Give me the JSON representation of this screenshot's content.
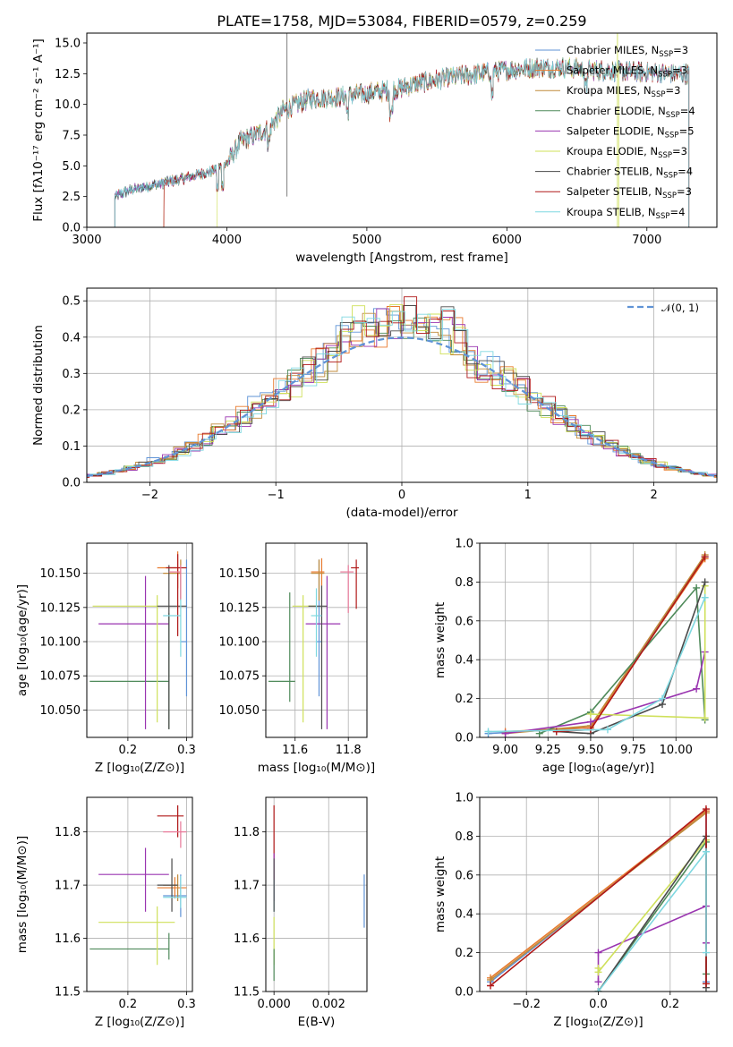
{
  "title": "PLATE=1758, MJD=53084, FIBERID=0579, z=0.259",
  "colors": {
    "chabrier_miles": "#5f93d6",
    "salpeter_miles": "#e87a2e",
    "kroupa_miles": "#c08a3a",
    "chabrier_elodie": "#4f8a5a",
    "salpeter_elodie": "#9a35b0",
    "kroupa_elodie": "#cfe05a",
    "chabrier_stelib": "#4a4a4a",
    "salpeter_stelib": "#b01818",
    "kroupa_stelib": "#7fd8e0",
    "pink": "#e87a9a",
    "normal": "#5f93d6"
  },
  "chart_data": [
    {
      "id": "spectrum",
      "type": "line",
      "xlabel": "wavelength [Angstrom, rest frame]",
      "ylabel": "Flux [fλ10⁻¹⁷ erg cm⁻² s⁻¹ A⁻¹]",
      "xlim": [
        3000,
        7500
      ],
      "ylim": [
        0,
        15.8
      ],
      "xticks": [
        "3000",
        "4000",
        "5000",
        "6000",
        "7000"
      ],
      "yticks": [
        "0.0",
        "2.5",
        "5.0",
        "7.5",
        "10.0",
        "12.5",
        "15.0"
      ],
      "legend_position": "upper-right",
      "legend": [
        {
          "label": "Chabrier MILES, N",
          "sub": "SSP",
          "suffix": "=3"
        },
        {
          "label": "Salpeter MILES, N",
          "sub": "SSP",
          "suffix": "=3"
        },
        {
          "label": "Kroupa MILES, N",
          "sub": "SSP",
          "suffix": "=3"
        },
        {
          "label": "Chabrier ELODIE, N",
          "sub": "SSP",
          "suffix": "=4"
        },
        {
          "label": "Salpeter ELODIE, N",
          "sub": "SSP",
          "suffix": "=5"
        },
        {
          "label": "Kroupa ELODIE, N",
          "sub": "SSP",
          "suffix": "=3"
        },
        {
          "label": "Chabrier STELIB, N",
          "sub": "SSP",
          "suffix": "=4"
        },
        {
          "label": "Salpeter STELIB, N",
          "sub": "SSP",
          "suffix": "=3"
        },
        {
          "label": "Kroupa STELIB, N",
          "sub": "SSP",
          "suffix": "=4"
        }
      ],
      "anchors_x": [
        3200,
        3300,
        3500,
        3700,
        3900,
        4000,
        4100,
        4200,
        4300,
        4400,
        4600,
        4800,
        5000,
        5200,
        5400,
        5600,
        5800,
        6000,
        6200,
        6400,
        6600,
        6800,
        7000,
        7200,
        7300
      ],
      "anchors_y": [
        2.5,
        3.0,
        3.5,
        4.0,
        4.6,
        5.2,
        7.0,
        7.5,
        8.0,
        9.5,
        10.5,
        10.6,
        10.9,
        11.2,
        11.8,
        12.2,
        12.5,
        12.8,
        13.0,
        13.0,
        12.8,
        12.7,
        12.6,
        12.5,
        12.5
      ],
      "series_start": [
        3200,
        3200,
        3550,
        3200,
        3200,
        3930,
        3200,
        3550,
        3200
      ],
      "series_end": [
        7300,
        7300,
        7300,
        7300,
        7300,
        6800,
        7300,
        7300,
        7300
      ]
    },
    {
      "id": "residuals",
      "type": "histogram",
      "xlabel": "(data-model)/error",
      "ylabel": "Normed distribution",
      "xlim": [
        -2.5,
        2.5
      ],
      "ylim": [
        0,
        0.535
      ],
      "xticks": [
        "−2",
        "−1",
        "0",
        "1",
        "2"
      ],
      "yticks": [
        "0.0",
        "0.1",
        "0.2",
        "0.3",
        "0.4",
        "0.5"
      ],
      "legend_position": "upper-right",
      "normal_label": "𝒩(0, 1)",
      "bin_width": 0.1
    },
    {
      "id": "age_vs_z",
      "type": "errorbar",
      "xlabel": "Z [log₁₀(Z/Z⊙)]",
      "ylabel": "age  [log₁₀(age/yr)]",
      "xlim": [
        0.13,
        0.31
      ],
      "ylim": [
        10.03,
        10.172
      ],
      "xticks": [
        "0.2",
        "0.3"
      ],
      "yticks": [
        "10.050",
        "10.075",
        "10.100",
        "10.125",
        "10.150"
      ],
      "points": [
        {
          "series": "chabrier_miles",
          "x": 0.3,
          "y": 10.1,
          "xe": [
            0.01,
            0.0
          ],
          "ye": [
            0.04,
            0.06
          ]
        },
        {
          "series": "salpeter_miles",
          "x": 0.285,
          "y": 10.154,
          "xe": [
            0.035,
            0.0
          ],
          "ye": [
            0.015,
            0.012
          ]
        },
        {
          "series": "kroupa_miles",
          "x": 0.29,
          "y": 10.15,
          "xe": [
            0.03,
            0.0
          ],
          "ye": [
            0.02,
            0.01
          ]
        },
        {
          "series": "chabrier_elodie",
          "x": 0.27,
          "y": 10.071,
          "xe": [
            0.135,
            0.0
          ],
          "ye": [
            0.035,
            0.05
          ]
        },
        {
          "series": "salpeter_elodie",
          "x": 0.23,
          "y": 10.113,
          "xe": [
            0.08,
            0.04
          ],
          "ye": [
            0.077,
            0.035
          ]
        },
        {
          "series": "kroupa_elodie",
          "x": 0.25,
          "y": 10.126,
          "xe": [
            0.11,
            0.0
          ],
          "ye": [
            0.085,
            0.008
          ]
        },
        {
          "series": "chabrier_stelib",
          "x": 0.27,
          "y": 10.126,
          "xe": [
            0.02,
            0.03
          ],
          "ye": [
            0.09,
            0.03
          ]
        },
        {
          "series": "salpeter_stelib",
          "x": 0.285,
          "y": 10.154,
          "xe": [
            0.02,
            0.015
          ],
          "ye": [
            0.05,
            0.01
          ]
        },
        {
          "series": "kroupa_stelib",
          "x": 0.29,
          "y": 10.119,
          "xe": [
            0.03,
            0.0
          ],
          "ye": [
            0.03,
            0.03
          ]
        },
        {
          "series": "pink",
          "x": 0.29,
          "y": 10.151,
          "xe": [
            0.02,
            0.0
          ],
          "ye": [
            0.02,
            0.005
          ]
        }
      ]
    },
    {
      "id": "age_vs_mass",
      "type": "errorbar",
      "xlabel": "mass [log₁₀(M/M⊙)]",
      "ylabel": "",
      "xlim": [
        11.49,
        11.87
      ],
      "ylim": [
        10.03,
        10.172
      ],
      "xticks": [
        "11.6",
        "11.8"
      ],
      "yticks": [
        "10.050",
        "10.075",
        "10.100",
        "10.125",
        "10.150"
      ],
      "points": [
        {
          "series": "chabrier_miles",
          "x": 11.69,
          "y": 10.1,
          "xe": [
            0.01,
            0.01
          ],
          "ye": [
            0.04,
            0.06
          ]
        },
        {
          "series": "salpeter_miles",
          "x": 11.7,
          "y": 10.151,
          "xe": [
            0.04,
            0.01
          ],
          "ye": [
            0.01,
            0.01
          ]
        },
        {
          "series": "kroupa_miles",
          "x": 11.69,
          "y": 10.15,
          "xe": [
            0.03,
            0.02
          ],
          "ye": [
            0.02,
            0.01
          ]
        },
        {
          "series": "chabrier_elodie",
          "x": 11.58,
          "y": 10.071,
          "xe": [
            0.08,
            0.02
          ],
          "ye": [
            0.015,
            0.065
          ]
        },
        {
          "series": "salpeter_elodie",
          "x": 11.72,
          "y": 10.113,
          "xe": [
            0.08,
            0.05
          ],
          "ye": [
            0.077,
            0.035
          ]
        },
        {
          "series": "kroupa_elodie",
          "x": 11.63,
          "y": 10.126,
          "xe": [
            0.04,
            0.05
          ],
          "ye": [
            0.085,
            0.008
          ]
        },
        {
          "series": "chabrier_stelib",
          "x": 11.7,
          "y": 10.126,
          "xe": [
            0.05,
            0.02
          ],
          "ye": [
            0.09,
            0.015
          ]
        },
        {
          "series": "salpeter_stelib",
          "x": 11.83,
          "y": 10.154,
          "xe": [
            0.02,
            0.01
          ],
          "ye": [
            0.03,
            0.006
          ]
        },
        {
          "series": "kroupa_stelib",
          "x": 11.68,
          "y": 10.119,
          "xe": [
            0.02,
            0.02
          ],
          "ye": [
            0.03,
            0.02
          ]
        },
        {
          "series": "pink",
          "x": 11.8,
          "y": 10.151,
          "xe": [
            0.03,
            0.02
          ],
          "ye": [
            0.03,
            0.005
          ]
        }
      ]
    },
    {
      "id": "weight_vs_age",
      "type": "line",
      "xlabel": "age  [log₁₀(age/yr)]",
      "ylabel": "mass weight",
      "xlim": [
        8.85,
        10.24
      ],
      "ylim": [
        0,
        1.0
      ],
      "xticks": [
        "9.00",
        "9.25",
        "9.50",
        "9.75",
        "10.00"
      ],
      "yticks": [
        "0.0",
        "0.2",
        "0.4",
        "0.6",
        "0.8",
        "1.0"
      ],
      "series": [
        {
          "name": "chabrier_miles",
          "x": [
            8.9,
            9.5,
            10.17
          ],
          "y": [
            0.02,
            0.05,
            0.93
          ]
        },
        {
          "name": "salpeter_miles",
          "x": [
            9.0,
            9.5,
            10.17
          ],
          "y": [
            0.03,
            0.05,
            0.92
          ]
        },
        {
          "name": "kroupa_miles",
          "x": [
            9.0,
            9.5,
            10.17
          ],
          "y": [
            0.02,
            0.06,
            0.94
          ]
        },
        {
          "name": "chabrier_elodie",
          "x": [
            9.2,
            9.5,
            10.12,
            10.17
          ],
          "y": [
            0.02,
            0.13,
            0.77,
            0.09
          ]
        },
        {
          "name": "salpeter_elodie",
          "x": [
            9.0,
            9.5,
            10.12,
            10.17
          ],
          "y": [
            0.02,
            0.08,
            0.25,
            0.44
          ]
        },
        {
          "name": "kroupa_elodie",
          "x": [
            9.5,
            10.17,
            10.17
          ],
          "y": [
            0.12,
            0.1,
            0.78
          ]
        },
        {
          "name": "chabrier_stelib",
          "x": [
            9.3,
            9.5,
            9.92,
            10.17
          ],
          "y": [
            0.03,
            0.02,
            0.17,
            0.8
          ]
        },
        {
          "name": "salpeter_stelib",
          "x": [
            9.3,
            9.5,
            10.17
          ],
          "y": [
            0.03,
            0.04,
            0.93
          ]
        },
        {
          "name": "kroupa_stelib",
          "x": [
            8.9,
            9.6,
            9.92,
            10.17
          ],
          "y": [
            0.03,
            0.04,
            0.2,
            0.72
          ]
        }
      ]
    },
    {
      "id": "mass_vs_z",
      "type": "errorbar",
      "xlabel": "Z [log₁₀(Z/Z⊙)]",
      "ylabel": "mass [log₁₀(M/M⊙)]",
      "xlim": [
        0.13,
        0.31
      ],
      "ylim": [
        11.5,
        11.865
      ],
      "xticks": [
        "0.2",
        "0.3"
      ],
      "yticks": [
        "11.5",
        "11.6",
        "11.7",
        "11.8"
      ],
      "points": [
        {
          "series": "chabrier_miles",
          "x": 0.29,
          "y": 11.68,
          "xe": [
            0.03,
            0.01
          ],
          "ye": [
            0.04,
            0.04
          ]
        },
        {
          "series": "salpeter_miles",
          "x": 0.28,
          "y": 11.695,
          "xe": [
            0.03,
            0.02
          ],
          "ye": [
            0.02,
            0.02
          ]
        },
        {
          "series": "kroupa_miles",
          "x": 0.285,
          "y": 11.7,
          "xe": [
            0.025,
            0.0
          ],
          "ye": [
            0.03,
            0.02
          ]
        },
        {
          "series": "chabrier_elodie",
          "x": 0.27,
          "y": 11.58,
          "xe": [
            0.135,
            0.0
          ],
          "ye": [
            0.02,
            0.03
          ]
        },
        {
          "series": "salpeter_elodie",
          "x": 0.23,
          "y": 11.72,
          "xe": [
            0.08,
            0.04
          ],
          "ye": [
            0.07,
            0.05
          ]
        },
        {
          "series": "kroupa_elodie",
          "x": 0.25,
          "y": 11.63,
          "xe": [
            0.1,
            0.03
          ],
          "ye": [
            0.08,
            0.03
          ]
        },
        {
          "series": "chabrier_stelib",
          "x": 0.275,
          "y": 11.7,
          "xe": [
            0.025,
            0.01
          ],
          "ye": [
            0.05,
            0.05
          ]
        },
        {
          "series": "salpeter_stelib",
          "x": 0.285,
          "y": 11.83,
          "xe": [
            0.035,
            0.01
          ],
          "ye": [
            0.04,
            0.02
          ]
        },
        {
          "series": "kroupa_stelib",
          "x": 0.29,
          "y": 11.677,
          "xe": [
            0.03,
            0.01
          ],
          "ye": [
            0.02,
            0.04
          ]
        },
        {
          "series": "pink",
          "x": 0.29,
          "y": 11.8,
          "xe": [
            0.03,
            0.01
          ],
          "ye": [
            0.03,
            0.02
          ]
        }
      ]
    },
    {
      "id": "mass_vs_ebv",
      "type": "errorbar",
      "xlabel": "E(B-V)",
      "ylabel": "",
      "xlim": [
        -0.0003,
        0.0034
      ],
      "ylim": [
        11.5,
        11.865
      ],
      "xticks": [
        "0.000",
        "0.002"
      ],
      "yticks": [
        "11.5",
        "11.6",
        "11.7",
        "11.8"
      ],
      "points": [
        {
          "series": "chabrier_miles",
          "x": 0.0033,
          "y": 11.67,
          "xe": [
            0,
            0
          ],
          "ye": [
            0.05,
            0.05
          ]
        },
        {
          "series": "salpeter_stelib",
          "x": 0.0,
          "y": 11.8,
          "xe": [
            0,
            0
          ],
          "ye": [
            0.05,
            0.05
          ]
        },
        {
          "series": "salpeter_elodie",
          "x": 0.0,
          "y": 11.72,
          "xe": [
            0,
            0
          ],
          "ye": [
            0.05,
            0.04
          ]
        },
        {
          "series": "kroupa_stelib",
          "x": 0.0,
          "y": 11.68,
          "xe": [
            0,
            0
          ],
          "ye": [
            0.03,
            0.03
          ]
        },
        {
          "series": "kroupa_elodie",
          "x": 0.0,
          "y": 11.6,
          "xe": [
            0,
            0
          ],
          "ye": [
            0.05,
            0.04
          ]
        },
        {
          "series": "chabrier_elodie",
          "x": 0.0,
          "y": 11.55,
          "xe": [
            0,
            0
          ],
          "ye": [
            0.03,
            0.03
          ]
        },
        {
          "series": "chabrier_stelib",
          "x": 0.0,
          "y": 11.7,
          "xe": [
            0,
            0
          ],
          "ye": [
            0.05,
            0.05
          ]
        }
      ]
    },
    {
      "id": "weight_vs_z",
      "type": "line",
      "xlabel": "Z [log₁₀(Z/Z⊙)]",
      "ylabel": "mass weight",
      "xlim": [
        -0.33,
        0.33
      ],
      "ylim": [
        0,
        1.0
      ],
      "xticks": [
        "−0.2",
        "0.0",
        "0.2"
      ],
      "yticks": [
        "0.0",
        "0.2",
        "0.4",
        "0.6",
        "0.8",
        "1.0"
      ],
      "series": [
        {
          "name": "chabrier_miles",
          "x": [
            -0.3,
            0.3,
            0.3
          ],
          "y": [
            0.05,
            0.93,
            0.05
          ]
        },
        {
          "name": "salpeter_miles",
          "x": [
            -0.3,
            0.3
          ],
          "y": [
            0.07,
            0.93
          ]
        },
        {
          "name": "kroupa_miles",
          "x": [
            -0.3,
            0.3
          ],
          "y": [
            0.06,
            0.92
          ]
        },
        {
          "name": "chabrier_elodie",
          "x": [
            0.0,
            0.3,
            0.3
          ],
          "y": [
            0.0,
            0.77,
            0.09
          ]
        },
        {
          "name": "salpeter_elodie",
          "x": [
            0.0,
            0.0,
            0.3,
            0.3
          ],
          "y": [
            0.05,
            0.2,
            0.44,
            0.25
          ]
        },
        {
          "name": "kroupa_elodie",
          "x": [
            0.0,
            0.0,
            0.3
          ],
          "y": [
            0.12,
            0.1,
            0.78
          ]
        },
        {
          "name": "chabrier_stelib",
          "x": [
            0.0,
            0.3,
            0.3
          ],
          "y": [
            0.0,
            0.8,
            0.02
          ]
        },
        {
          "name": "salpeter_stelib",
          "x": [
            -0.3,
            0.3,
            0.3
          ],
          "y": [
            0.03,
            0.94,
            0.04
          ]
        },
        {
          "name": "kroupa_stelib",
          "x": [
            0.0,
            0.3,
            0.3
          ],
          "y": [
            0.0,
            0.72,
            0.2
          ]
        }
      ]
    }
  ]
}
